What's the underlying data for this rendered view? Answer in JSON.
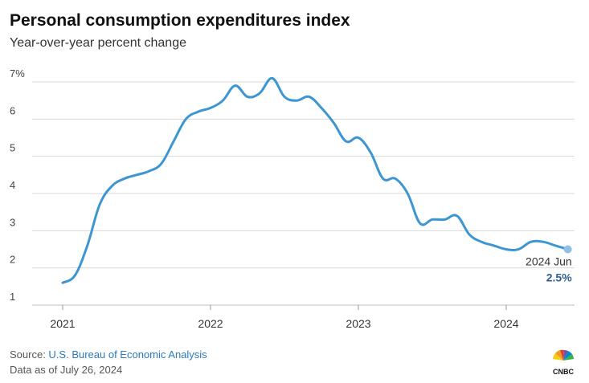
{
  "chart_data": {
    "type": "line",
    "title": "Personal consumption expenditures index",
    "subtitle": "Year-over-year percent change",
    "xlabel": "",
    "ylabel": "",
    "ylim": [
      1,
      7
    ],
    "y_ticks": [
      "7%",
      "6",
      "5",
      "4",
      "3",
      "2",
      "1"
    ],
    "x_ticks": [
      "2021",
      "2022",
      "2023",
      "2024"
    ],
    "grid": true,
    "series": [
      {
        "color": "#3d96d2",
        "points": [
          {
            "x": "2021-01",
            "y": 1.6
          },
          {
            "x": "2021-02",
            "y": 1.8
          },
          {
            "x": "2021-03",
            "y": 2.6
          },
          {
            "x": "2021-04",
            "y": 3.7
          },
          {
            "x": "2021-05",
            "y": 4.2
          },
          {
            "x": "2021-06",
            "y": 4.4
          },
          {
            "x": "2021-07",
            "y": 4.5
          },
          {
            "x": "2021-08",
            "y": 4.6
          },
          {
            "x": "2021-09",
            "y": 4.8
          },
          {
            "x": "2021-10",
            "y": 5.4
          },
          {
            "x": "2021-11",
            "y": 6.0
          },
          {
            "x": "2021-12",
            "y": 6.2
          },
          {
            "x": "2022-01",
            "y": 6.3
          },
          {
            "x": "2022-02",
            "y": 6.5
          },
          {
            "x": "2022-03",
            "y": 6.9
          },
          {
            "x": "2022-04",
            "y": 6.6
          },
          {
            "x": "2022-05",
            "y": 6.7
          },
          {
            "x": "2022-06",
            "y": 7.1
          },
          {
            "x": "2022-07",
            "y": 6.6
          },
          {
            "x": "2022-08",
            "y": 6.5
          },
          {
            "x": "2022-09",
            "y": 6.6
          },
          {
            "x": "2022-10",
            "y": 6.3
          },
          {
            "x": "2022-11",
            "y": 5.9
          },
          {
            "x": "2022-12",
            "y": 5.4
          },
          {
            "x": "2023-01",
            "y": 5.5
          },
          {
            "x": "2023-02",
            "y": 5.1
          },
          {
            "x": "2023-03",
            "y": 4.4
          },
          {
            "x": "2023-04",
            "y": 4.4
          },
          {
            "x": "2023-05",
            "y": 4.0
          },
          {
            "x": "2023-06",
            "y": 3.2
          },
          {
            "x": "2023-07",
            "y": 3.3
          },
          {
            "x": "2023-08",
            "y": 3.3
          },
          {
            "x": "2023-09",
            "y": 3.4
          },
          {
            "x": "2023-10",
            "y": 2.9
          },
          {
            "x": "2023-11",
            "y": 2.7
          },
          {
            "x": "2023-12",
            "y": 2.6
          },
          {
            "x": "2024-01",
            "y": 2.5
          },
          {
            "x": "2024-02",
            "y": 2.5
          },
          {
            "x": "2024-03",
            "y": 2.7
          },
          {
            "x": "2024-04",
            "y": 2.7
          },
          {
            "x": "2024-05",
            "y": 2.6
          },
          {
            "x": "2024-06",
            "y": 2.5
          }
        ]
      }
    ],
    "annotation": {
      "label": "2024 Jun",
      "value": "2.5%"
    }
  },
  "footer": {
    "source_prefix": "Source: ",
    "source_name": "U.S. Bureau of Economic Analysis",
    "as_of": "Data as of July 26, 2024"
  },
  "brand": {
    "logo_text": "CNBC"
  },
  "colors": {
    "line": "#3d96d2",
    "annotation_value": "#2f5e8f",
    "grid": "#d9d9d9",
    "link": "#2a7ac0"
  }
}
